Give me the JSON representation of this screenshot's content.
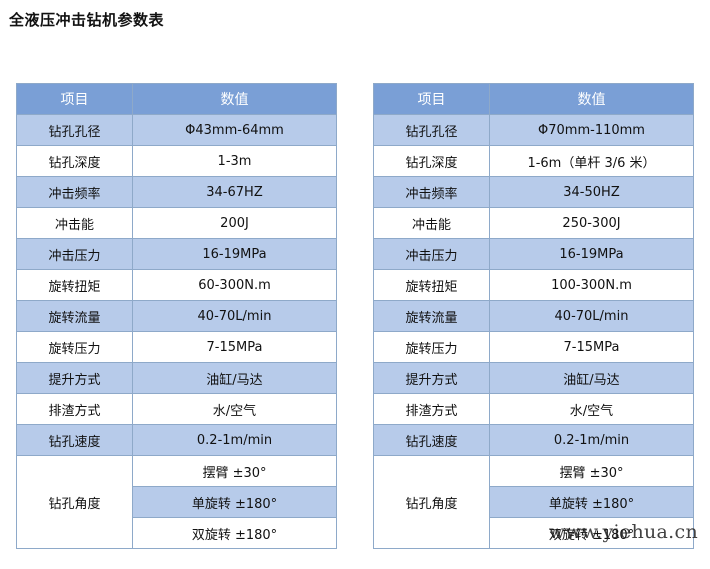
{
  "title": "全液压冲击钻机参数表",
  "columns": {
    "item": "项目",
    "value": "数值"
  },
  "left_table": {
    "rows": [
      {
        "label": "钻孔孔径",
        "value": "Φ43mm-64mm"
      },
      {
        "label": "钻孔深度",
        "value": "1-3m"
      },
      {
        "label": "冲击频率",
        "value": "34-67HZ"
      },
      {
        "label": "冲击能",
        "value": "200J"
      },
      {
        "label": "冲击压力",
        "value": "16-19MPa"
      },
      {
        "label": "旋转扭矩",
        "value": "60-300N.m"
      },
      {
        "label": "旋转流量",
        "value": "40-70L/min"
      },
      {
        "label": "旋转压力",
        "value": "7-15MPa"
      },
      {
        "label": "提升方式",
        "value": "油缸/马达"
      },
      {
        "label": "排渣方式",
        "value": "水/空气"
      },
      {
        "label": "钻孔速度",
        "value": "0.2-1m/min"
      }
    ],
    "angle": {
      "label": "钻孔角度",
      "options": [
        "摆臂 ±30°",
        "单旋转 ±180°",
        "双旋转 ±180°"
      ]
    }
  },
  "right_table": {
    "rows": [
      {
        "label": "钻孔孔径",
        "value": "Φ70mm-110mm"
      },
      {
        "label": "钻孔深度",
        "value": "1-6m（单杆 3/6 米）"
      },
      {
        "label": "冲击频率",
        "value": "34-50HZ"
      },
      {
        "label": "冲击能",
        "value": "250-300J"
      },
      {
        "label": "冲击压力",
        "value": "16-19MPa"
      },
      {
        "label": "旋转扭矩",
        "value": "100-300N.m"
      },
      {
        "label": "旋转流量",
        "value": "40-70L/min"
      },
      {
        "label": "旋转压力",
        "value": "7-15MPa"
      },
      {
        "label": "提升方式",
        "value": "油缸/马达"
      },
      {
        "label": "排渣方式",
        "value": "水/空气"
      },
      {
        "label": "钻孔速度",
        "value": "0.2-1m/min"
      }
    ],
    "angle": {
      "label": "钻孔角度",
      "options": [
        "摆臂 ±30°",
        "单旋转 ±180°",
        "双旋转 ±180°"
      ]
    }
  },
  "watermark": "www.yiehua.cn",
  "colors": {
    "header_bg": "#7a9fd6",
    "shaded_row_bg": "#b7cbea",
    "border": "#8ea9c9"
  }
}
